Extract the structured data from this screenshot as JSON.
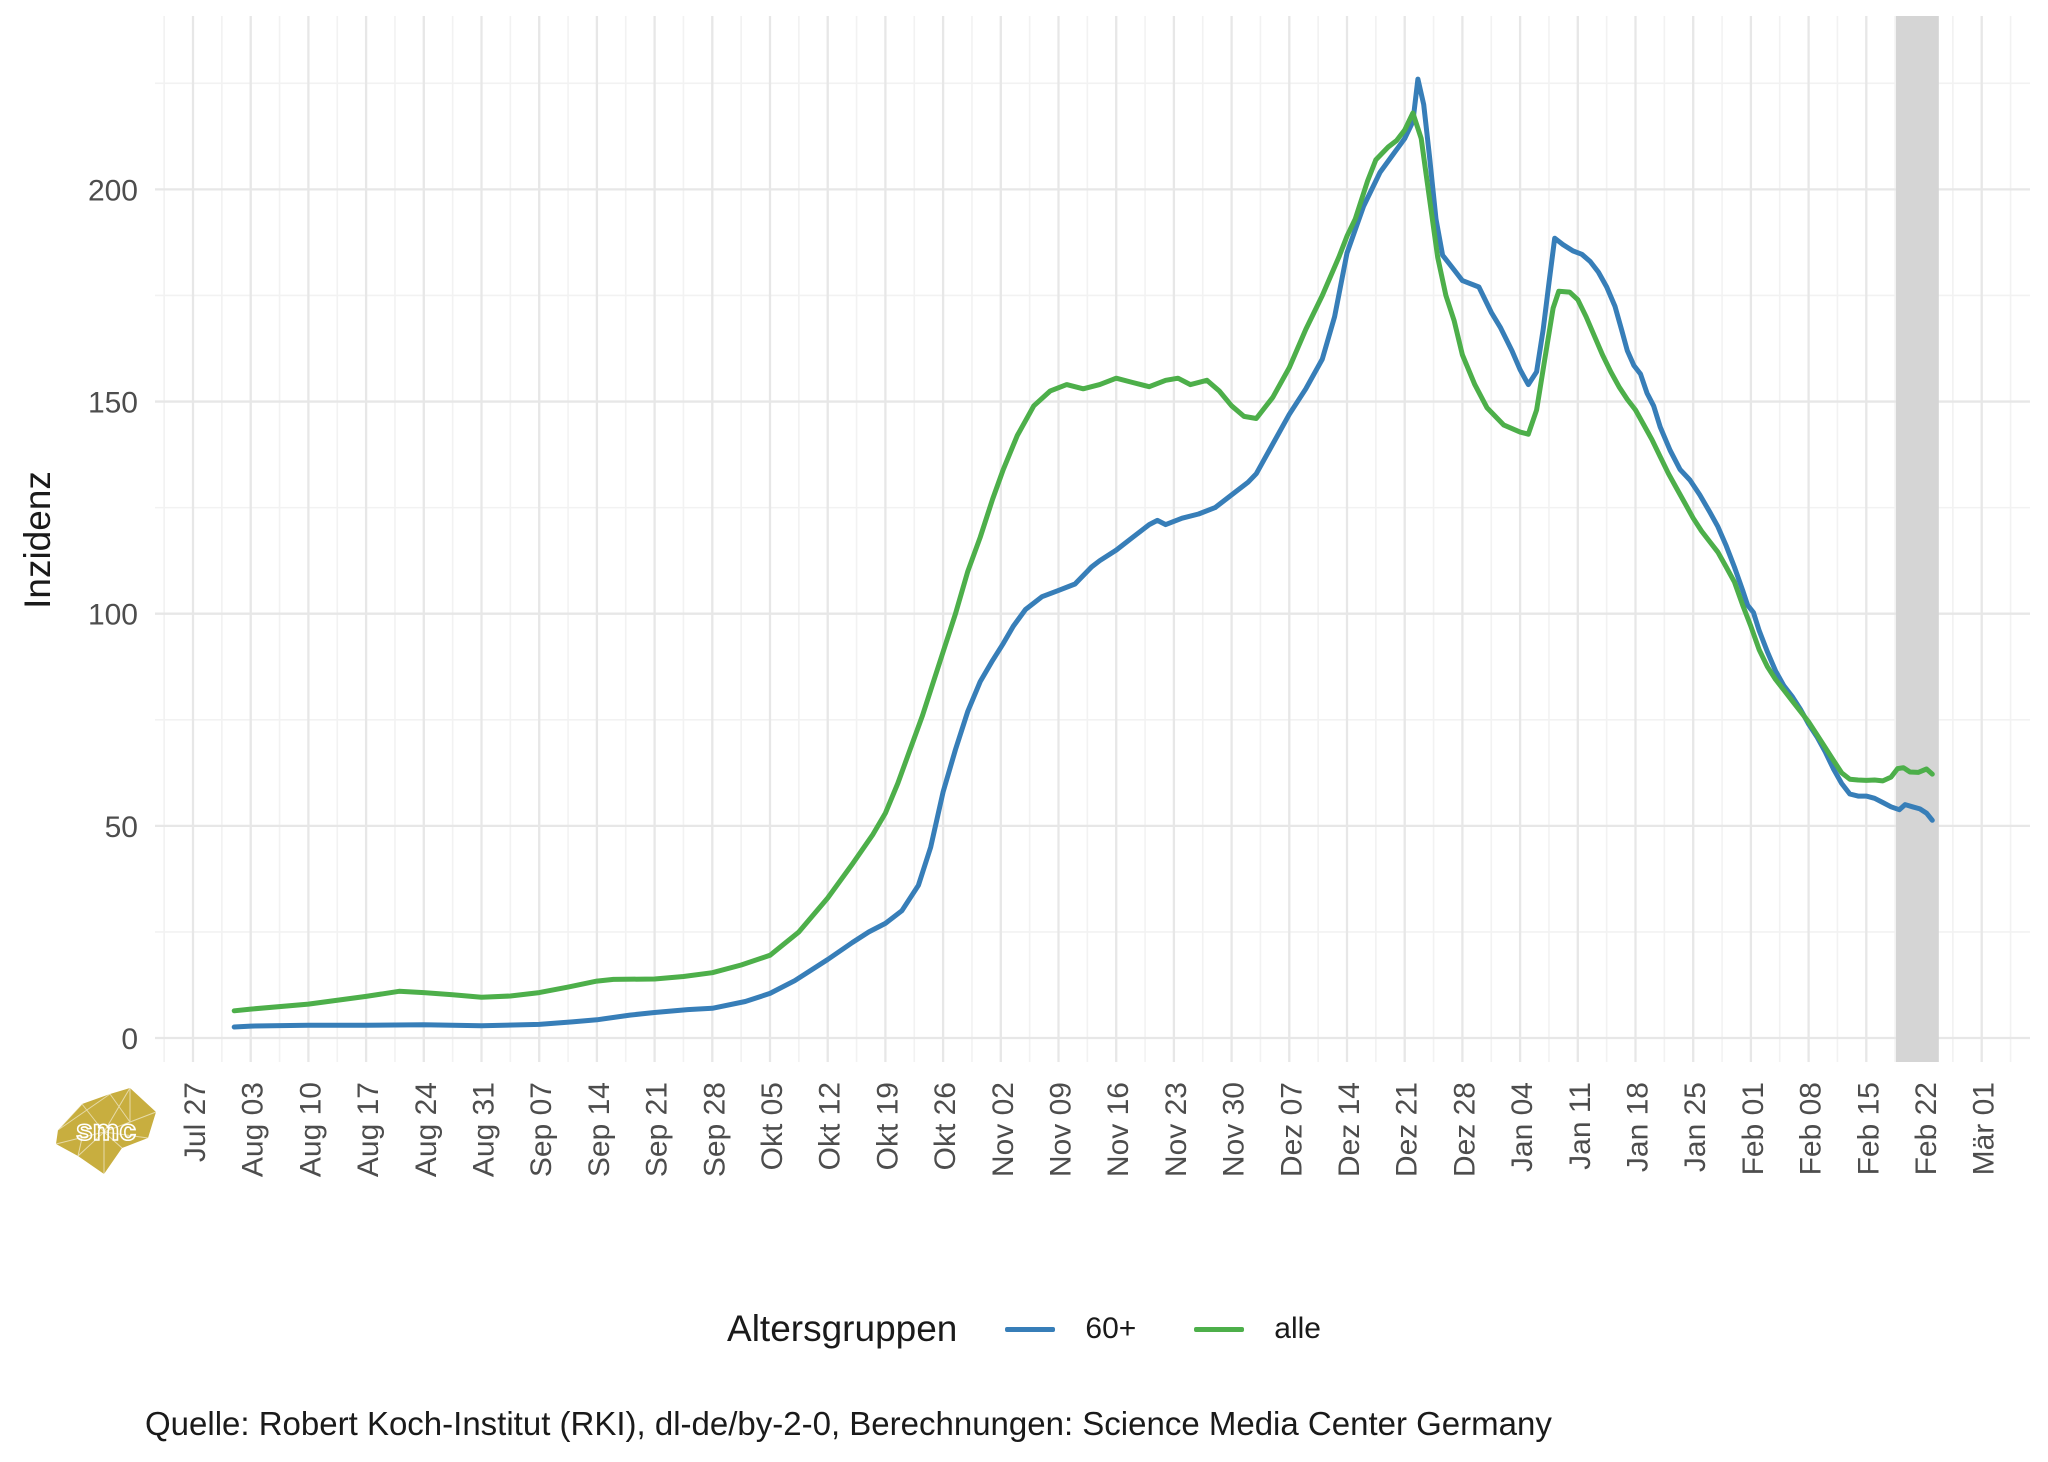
{
  "chart_data": {
    "type": "line",
    "y_axis_title": "Inzidenz",
    "x_tick_labels": [
      "Jul 27",
      "Aug 03",
      "Aug 10",
      "Aug 17",
      "Aug 24",
      "Aug 31",
      "Sep 07",
      "Sep 14",
      "Sep 21",
      "Sep 28",
      "Okt 05",
      "Okt 12",
      "Okt 19",
      "Okt 26",
      "Nov 02",
      "Nov 09",
      "Nov 16",
      "Nov 23",
      "Nov 30",
      "Dez 07",
      "Dez 14",
      "Dez 21",
      "Dez 28",
      "Jan 04",
      "Jan 11",
      "Jan 18",
      "Jan 25",
      "Feb 01",
      "Feb 08",
      "Feb 15",
      "Feb 22",
      "Mär 01"
    ],
    "y_ticks": [
      0,
      50,
      100,
      150,
      200
    ],
    "y_minor_ticks": [
      25,
      75,
      125,
      175,
      225
    ],
    "ylim": [
      0,
      233
    ],
    "grid": "major+minor",
    "legend_position": "bottom",
    "highlight_band": {
      "start_day": 206.6,
      "end_day": 211.8,
      "color": "#d5d5d5"
    },
    "series": [
      {
        "name": "60+",
        "key": "60plus",
        "color": "#377eb8",
        "points": [
          [
            5,
            2.6
          ],
          [
            7,
            2.8
          ],
          [
            14,
            3
          ],
          [
            21,
            3
          ],
          [
            28,
            3.1
          ],
          [
            35,
            2.9
          ],
          [
            42,
            3.2
          ],
          [
            46,
            3.8
          ],
          [
            49,
            4.3
          ],
          [
            53,
            5.4
          ],
          [
            56,
            6
          ],
          [
            60,
            6.7
          ],
          [
            63,
            7
          ],
          [
            67,
            8.6
          ],
          [
            70,
            10.5
          ],
          [
            73,
            13.5
          ],
          [
            77,
            18.5
          ],
          [
            80,
            22.5
          ],
          [
            82,
            25
          ],
          [
            84,
            27
          ],
          [
            86,
            30
          ],
          [
            88,
            36
          ],
          [
            89.5,
            45
          ],
          [
            91,
            58
          ],
          [
            92.5,
            68
          ],
          [
            94,
            77
          ],
          [
            95.5,
            84
          ],
          [
            97,
            89
          ],
          [
            98.3,
            93
          ],
          [
            99.5,
            97
          ],
          [
            101,
            101
          ],
          [
            103,
            104
          ],
          [
            105,
            105.5
          ],
          [
            107,
            107
          ],
          [
            109,
            111
          ],
          [
            110,
            112.5
          ],
          [
            112,
            115
          ],
          [
            114,
            118
          ],
          [
            116,
            121
          ],
          [
            117,
            122
          ],
          [
            118,
            121
          ],
          [
            120,
            122.5
          ],
          [
            122,
            123.5
          ],
          [
            124,
            125
          ],
          [
            126,
            128
          ],
          [
            128,
            131
          ],
          [
            129,
            133
          ],
          [
            131,
            140
          ],
          [
            133,
            147
          ],
          [
            135,
            153
          ],
          [
            137,
            160
          ],
          [
            138.5,
            170
          ],
          [
            140,
            185
          ],
          [
            142,
            196
          ],
          [
            144,
            204
          ],
          [
            145.5,
            208
          ],
          [
            147,
            212
          ],
          [
            148,
            216
          ],
          [
            148.6,
            226
          ],
          [
            149.3,
            220
          ],
          [
            150,
            208
          ],
          [
            150.8,
            193
          ],
          [
            151.6,
            184.5
          ],
          [
            153,
            181
          ],
          [
            154,
            178.5
          ],
          [
            156,
            177
          ],
          [
            157.5,
            171
          ],
          [
            158.6,
            167.5
          ],
          [
            160,
            162
          ],
          [
            161,
            157.5
          ],
          [
            162,
            154
          ],
          [
            163,
            157
          ],
          [
            163.8,
            167
          ],
          [
            164.5,
            178
          ],
          [
            165.2,
            188.5
          ],
          [
            166.2,
            187
          ],
          [
            167.4,
            185.5
          ],
          [
            168.5,
            184.7
          ],
          [
            169.5,
            183
          ],
          [
            170.5,
            180.5
          ],
          [
            171.5,
            177
          ],
          [
            172.5,
            172.5
          ],
          [
            173.3,
            167
          ],
          [
            174,
            162
          ],
          [
            174.8,
            158.5
          ],
          [
            175.6,
            156.5
          ],
          [
            176.4,
            152
          ],
          [
            177.2,
            149
          ],
          [
            178,
            144
          ],
          [
            179.2,
            138.5
          ],
          [
            180.4,
            134
          ],
          [
            181.6,
            131.5
          ],
          [
            182.8,
            128
          ],
          [
            184,
            124
          ],
          [
            185,
            120.5
          ],
          [
            186,
            116
          ],
          [
            187,
            111
          ],
          [
            188,
            105.5
          ],
          [
            188.6,
            102
          ],
          [
            189.3,
            100.3
          ],
          [
            190,
            96
          ],
          [
            191,
            91
          ],
          [
            192,
            86.5
          ],
          [
            193,
            83
          ],
          [
            194,
            80.5
          ],
          [
            195,
            77.5
          ],
          [
            196,
            74
          ],
          [
            197,
            71
          ],
          [
            198,
            67.5
          ],
          [
            199,
            63.5
          ],
          [
            200,
            60
          ],
          [
            201,
            57.5
          ],
          [
            202,
            57
          ],
          [
            203,
            57
          ],
          [
            204,
            56.5
          ],
          [
            205,
            55.5
          ],
          [
            206,
            54.5
          ],
          [
            207,
            53.8
          ],
          [
            207.7,
            55
          ],
          [
            208.6,
            54.5
          ],
          [
            209.5,
            54
          ],
          [
            210.3,
            53
          ],
          [
            211,
            51.3
          ]
        ]
      },
      {
        "name": "alle",
        "key": "alle",
        "color": "#4daf4a",
        "points": [
          [
            5,
            6.4
          ],
          [
            7,
            6.8
          ],
          [
            14,
            8
          ],
          [
            21,
            9.8
          ],
          [
            25,
            11
          ],
          [
            28,
            10.7
          ],
          [
            31.5,
            10.2
          ],
          [
            35,
            9.6
          ],
          [
            38.5,
            9.9
          ],
          [
            42,
            10.7
          ],
          [
            45.5,
            12
          ],
          [
            49,
            13.4
          ],
          [
            51,
            13.8
          ],
          [
            56,
            13.9
          ],
          [
            59.5,
            14.5
          ],
          [
            63,
            15.4
          ],
          [
            66.5,
            17.2
          ],
          [
            70,
            19.5
          ],
          [
            73.5,
            25
          ],
          [
            77,
            33
          ],
          [
            80,
            41
          ],
          [
            82.5,
            48
          ],
          [
            84,
            53
          ],
          [
            85.5,
            60
          ],
          [
            87,
            68
          ],
          [
            88.5,
            76
          ],
          [
            89.5,
            82
          ],
          [
            91,
            91
          ],
          [
            92.5,
            100
          ],
          [
            94,
            110
          ],
          [
            95.5,
            118
          ],
          [
            97,
            127
          ],
          [
            98.3,
            134
          ],
          [
            100,
            142
          ],
          [
            102,
            149
          ],
          [
            104,
            152.5
          ],
          [
            106,
            154
          ],
          [
            108,
            153
          ],
          [
            110,
            154
          ],
          [
            112,
            155.5
          ],
          [
            114,
            154.5
          ],
          [
            116,
            153.5
          ],
          [
            118,
            155
          ],
          [
            119.5,
            155.5
          ],
          [
            121,
            154
          ],
          [
            123,
            155
          ],
          [
            124.5,
            152.5
          ],
          [
            126,
            149
          ],
          [
            127.5,
            146.5
          ],
          [
            129,
            146
          ],
          [
            131,
            151
          ],
          [
            133,
            158
          ],
          [
            135,
            167
          ],
          [
            137,
            175
          ],
          [
            139,
            184
          ],
          [
            140,
            189
          ],
          [
            141,
            193
          ],
          [
            142.5,
            202
          ],
          [
            143.5,
            207
          ],
          [
            145,
            210
          ],
          [
            146,
            211.5
          ],
          [
            147,
            214
          ],
          [
            148,
            218
          ],
          [
            149,
            212
          ],
          [
            150,
            198
          ],
          [
            151,
            184
          ],
          [
            152,
            175
          ],
          [
            153,
            169
          ],
          [
            154,
            161
          ],
          [
            155.5,
            154
          ],
          [
            157,
            148.5
          ],
          [
            159,
            144.5
          ],
          [
            161,
            142.8
          ],
          [
            162,
            142.3
          ],
          [
            163,
            148
          ],
          [
            164,
            160
          ],
          [
            165,
            172
          ],
          [
            165.7,
            176
          ],
          [
            167,
            175.8
          ],
          [
            168,
            174
          ],
          [
            169,
            170
          ],
          [
            170,
            165.5
          ],
          [
            171,
            161
          ],
          [
            172,
            157
          ],
          [
            173,
            153.5
          ],
          [
            174,
            150.5
          ],
          [
            175,
            148
          ],
          [
            176,
            144.5
          ],
          [
            177,
            141
          ],
          [
            178,
            137
          ],
          [
            179,
            133
          ],
          [
            180,
            129.5
          ],
          [
            181,
            126
          ],
          [
            182,
            122.5
          ],
          [
            183,
            119.5
          ],
          [
            184,
            117
          ],
          [
            185,
            114.5
          ],
          [
            186,
            111
          ],
          [
            187,
            107.5
          ],
          [
            188,
            102
          ],
          [
            189,
            97
          ],
          [
            190,
            91.5
          ],
          [
            191,
            87.5
          ],
          [
            192,
            84.5
          ],
          [
            193,
            82
          ],
          [
            194,
            79.5
          ],
          [
            195,
            77
          ],
          [
            196,
            74.5
          ],
          [
            197,
            71.5
          ],
          [
            198,
            68.5
          ],
          [
            199,
            65.5
          ],
          [
            200,
            62.5
          ],
          [
            201,
            61
          ],
          [
            202,
            60.8
          ],
          [
            203,
            60.7
          ],
          [
            204,
            60.8
          ],
          [
            205,
            60.6
          ],
          [
            206,
            61.5
          ],
          [
            206.8,
            63.5
          ],
          [
            207.5,
            63.7
          ],
          [
            208.3,
            62.7
          ],
          [
            209.3,
            62.6
          ],
          [
            210.3,
            63.4
          ],
          [
            211,
            62.2
          ]
        ]
      }
    ]
  },
  "legend": {
    "title": "Altersgruppen",
    "items": [
      {
        "label": "60+"
      },
      {
        "label": "alle"
      }
    ]
  },
  "footer": {
    "source": "Quelle: Robert Koch-Institut (RKI), dl-de/by-2-0, Berechnungen: Science Media Center Germany"
  },
  "logo": {
    "text": "smc",
    "color": "#c8ae3f"
  },
  "style": {
    "grid_major_color": "#e7e7e7",
    "grid_minor_color": "#f2f2f2",
    "tick_label_color": "#4d4d4d",
    "background": "#ffffff"
  }
}
